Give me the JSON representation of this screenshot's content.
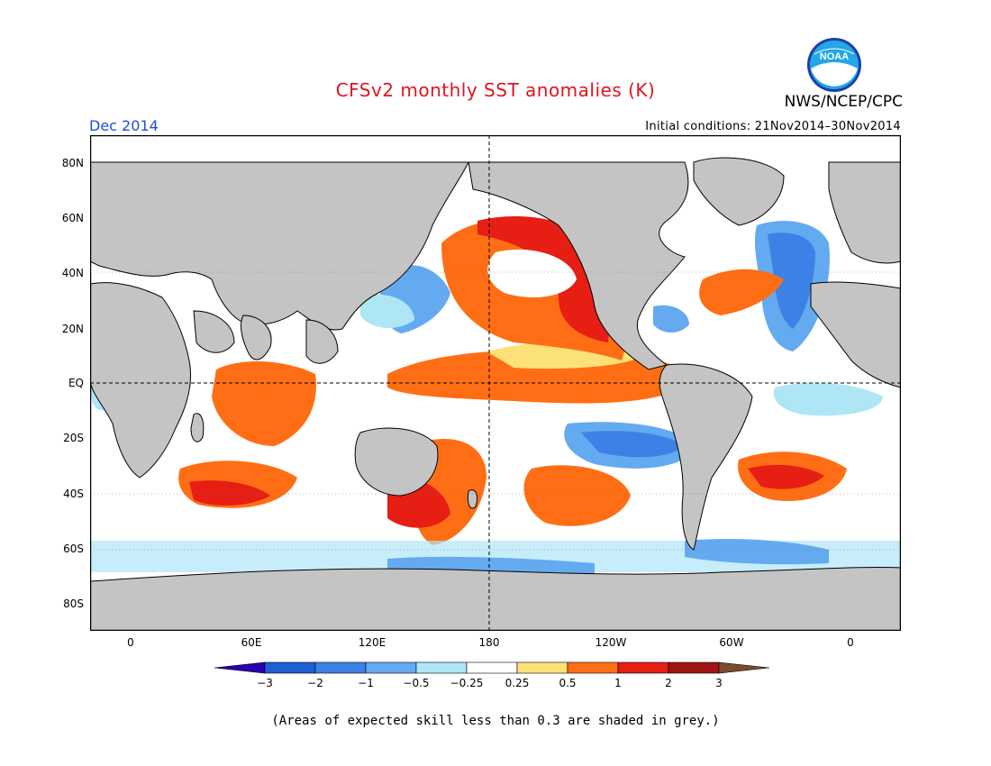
{
  "header": {
    "title": "CFSv2 monthly SST anomalies (K)",
    "org": "NWS/NCEP/CPC",
    "logo_text": "NOAA",
    "month": "Dec 2014",
    "initial_conditions": "Initial conditions: 21Nov2014–30Nov2014"
  },
  "map": {
    "projection": "equirectangular",
    "lat_labels": [
      "80N",
      "60N",
      "40N",
      "20N",
      "EQ",
      "20S",
      "40S",
      "60S",
      "80S"
    ],
    "lon_labels": [
      "0",
      "60E",
      "120E",
      "180",
      "120W",
      "60W",
      "0"
    ],
    "land_color": "#c4c4c4",
    "grey_mask_color": "#c4c4c4",
    "reference_lines": [
      "equator",
      "dateline"
    ]
  },
  "colorbar": {
    "ticks": [
      "−3",
      "−2",
      "−1",
      "−0.5",
      "−0.25",
      "0.25",
      "0.5",
      "1",
      "2",
      "3"
    ],
    "colors": [
      "#2a00b4",
      "#1e5fd2",
      "#3c82e6",
      "#64aaf0",
      "#aee6f6",
      "#ffffff",
      "#fce178",
      "#ff6e14",
      "#e61e14",
      "#a01414",
      "#7a4a32"
    ],
    "units": "K"
  },
  "footnote": "(Areas of expected skill less than 0.3 are shaded in grey.)"
}
